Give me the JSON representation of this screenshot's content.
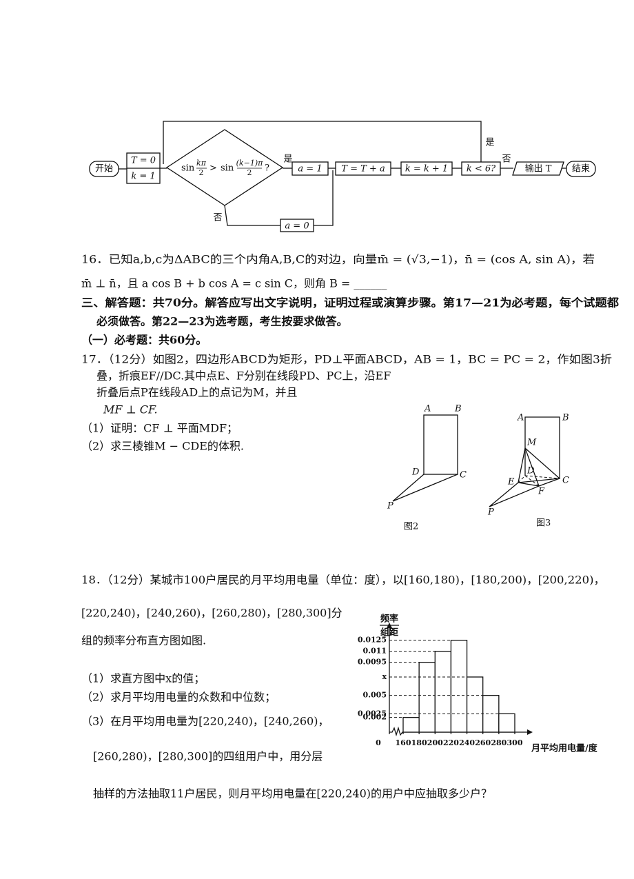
{
  "flowchart": {
    "start": "开始",
    "init_t": "T = 0",
    "init_k": "k = 1",
    "condition": {
      "left": "sin",
      "left_num": "kπ",
      "left_den": "2",
      "op": ">",
      "right": "sin",
      "right_num": "(k−1)π",
      "right_den": "2",
      "q": "?"
    },
    "yes": "是",
    "no": "否",
    "a1": "a = 1",
    "a0": "a = 0",
    "update_t": "T = T + a",
    "update_k": "k = k + 1",
    "loop_condition": "k < 6?",
    "loop_yes": "是",
    "loop_no": "否",
    "output": "输出 T",
    "end": "结束"
  },
  "q16": {
    "line1": "16．已知a,b,c为ΔABC的三个内角A,B,C的对边，向量m̄ = (√3,−1)，n̄ = (cos A, sin A)，若",
    "line2": "m̄ ⊥ n̄，且 a cos B + b cos A = c sin C，则角 B = ______"
  },
  "section3": {
    "line1": "三、解答题：共70分。解答应写出文字说明，证明过程或演算步骤。第17—21为必考题，每个试题都",
    "line2": "必须做答。第22—23为选考题，考生按要求做答。",
    "part1": "（一）必考题：共60分。"
  },
  "q17": {
    "line1": "17．（12分）如图2，四边形ABCD为矩形，PD⊥平面ABCD，AB = 1，BC = PC = 2，作如图3折",
    "line2": "叠，折痕EF//DC.其中点E、F分别在线段PD、PC上，沿EF",
    "line3": "折叠后点P在线段AD上的点记为M，并且",
    "line4": "MF ⊥ CF.",
    "sub1": "（1）证明：CF ⊥ 平面MDF；",
    "sub2": "（2）求三棱锥M − CDE的体积.",
    "fig2": {
      "A": "A",
      "B": "B",
      "C": "C",
      "D": "D",
      "P": "P",
      "caption": "图2"
    },
    "fig3": {
      "A": "A",
      "B": "B",
      "C": "C",
      "D": "D",
      "E": "E",
      "F": "F",
      "M": "M",
      "P": "P",
      "caption": "图3"
    }
  },
  "q18": {
    "line1": "18．（12分）某城市100户居民的月平均用电量（单位：度），以[160,180)，[180,200)，[200,220)，",
    "line2": "[220,240)，[240,260)，[260,280)，[280,300]分",
    "line3": "组的频率分布直方图如图.",
    "sub1": "（1）求直方图中x的值；",
    "sub2": "（2）求月平均用电量的众数和中位数；",
    "sub3": "（3）在月平均用电量为[220,240)，[240,260)，",
    "sub3_line2": "[260,280)，[280,300]的四组用户中，用分层",
    "sub3_line3": "抽样的方法抽取11户居民，则月平均用电量在[220,240)的用户中应抽取多少户？",
    "chart_data": {
      "type": "histogram",
      "y_label_top": "频率",
      "y_label_bottom": "组距",
      "x_label": "月平均用电量/度",
      "bins": [
        160,
        180,
        200,
        220,
        240,
        260,
        280,
        300
      ],
      "values": [
        0.002,
        0.0095,
        0.011,
        0.0125,
        0.0075,
        0.005,
        0.0025
      ],
      "color": "#ffffff",
      "xticks": [
        0,
        160,
        180,
        200,
        220,
        240,
        260,
        280,
        300
      ],
      "ylim": [
        0,
        0.0135
      ],
      "yticks": [
        0.0125,
        0.011,
        0.0095,
        {
          "value": 0.0075,
          "label": "x"
        },
        0.005,
        0.0025,
        0.002
      ],
      "grid": true
    }
  }
}
